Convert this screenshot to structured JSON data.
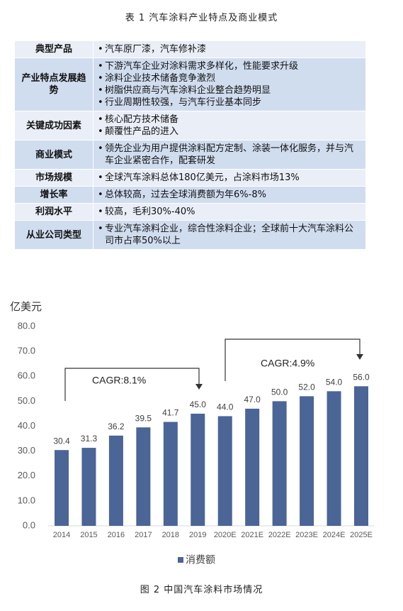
{
  "header": {
    "title": "表 1  汽车涂料产业特点及商业模式"
  },
  "table": {
    "rows": [
      [
        "典型产品",
        [
          "汽车原厂漆，汽车修补漆"
        ]
      ],
      [
        "产业特点发展趋势",
        [
          "下游汽车企业对涂料需求多样化，性能要求升级",
          "涂料企业技术储备竞争激烈",
          "树脂供应商与汽车涂料企业整合趋势明显",
          "行业周期性较强，与汽车行业基本同步"
        ]
      ],
      [
        "关键成功因素",
        [
          "核心配方技术储备",
          "颠覆性产品的进入"
        ]
      ],
      [
        "商业模式",
        [
          "领先企业为用户提供涂料配方定制、涂装一体化服务，并与汽车企业紧密合作，配套研发"
        ]
      ],
      [
        "市场规模",
        [
          "全球汽车涂料总体180亿美元，占涂料市场13%"
        ]
      ],
      [
        "增长率",
        [
          "总体较高，过去全球消费额为年6%-8%"
        ]
      ],
      [
        "利润水平",
        [
          "较高，毛利30%-40%"
        ]
      ],
      [
        "从业公司类型",
        [
          "专业汽车涂料企业，综合性涂料企业；全球前十大汽车涂料公司市占率50%以上"
        ]
      ]
    ]
  },
  "chart_data": {
    "type": "bar",
    "y_label": "亿美元",
    "categories": [
      "2014",
      "2015",
      "2016",
      "2017",
      "2018",
      "2019",
      "2020E",
      "2021E",
      "2022E",
      "2023E",
      "2024E",
      "2025E"
    ],
    "series": [
      {
        "name": "消费额",
        "color": "#4a6596",
        "values": [
          30.4,
          31.3,
          36.2,
          39.5,
          41.7,
          45,
          44,
          47,
          50,
          52,
          54,
          56
        ],
        "value_labels": [
          "30.4",
          "31.3",
          "36.2",
          "39.5",
          "41.7",
          "45.0",
          "44.0",
          "47.0",
          "50.0",
          "52.0",
          "54.0",
          "56.0"
        ]
      }
    ],
    "ylim": [
      0,
      80
    ],
    "yticks": [
      {
        "value": 0,
        "label": "0.0"
      },
      {
        "value": 10,
        "label": "10.0"
      },
      {
        "value": 20,
        "label": "20.0"
      },
      {
        "value": 30,
        "label": "30.0"
      },
      {
        "value": 40,
        "label": "40.0"
      },
      {
        "value": 50,
        "label": "50.0"
      },
      {
        "value": 60,
        "label": "60.0"
      },
      {
        "value": 70,
        "label": "70.0"
      },
      {
        "value": 80,
        "label": "80.0"
      }
    ],
    "annotations": [
      "CAGR:8.1%",
      "CAGR:4.9%"
    ],
    "legend": "bottom",
    "caption": "图 2  中国汽车涂料市场情况"
  }
}
